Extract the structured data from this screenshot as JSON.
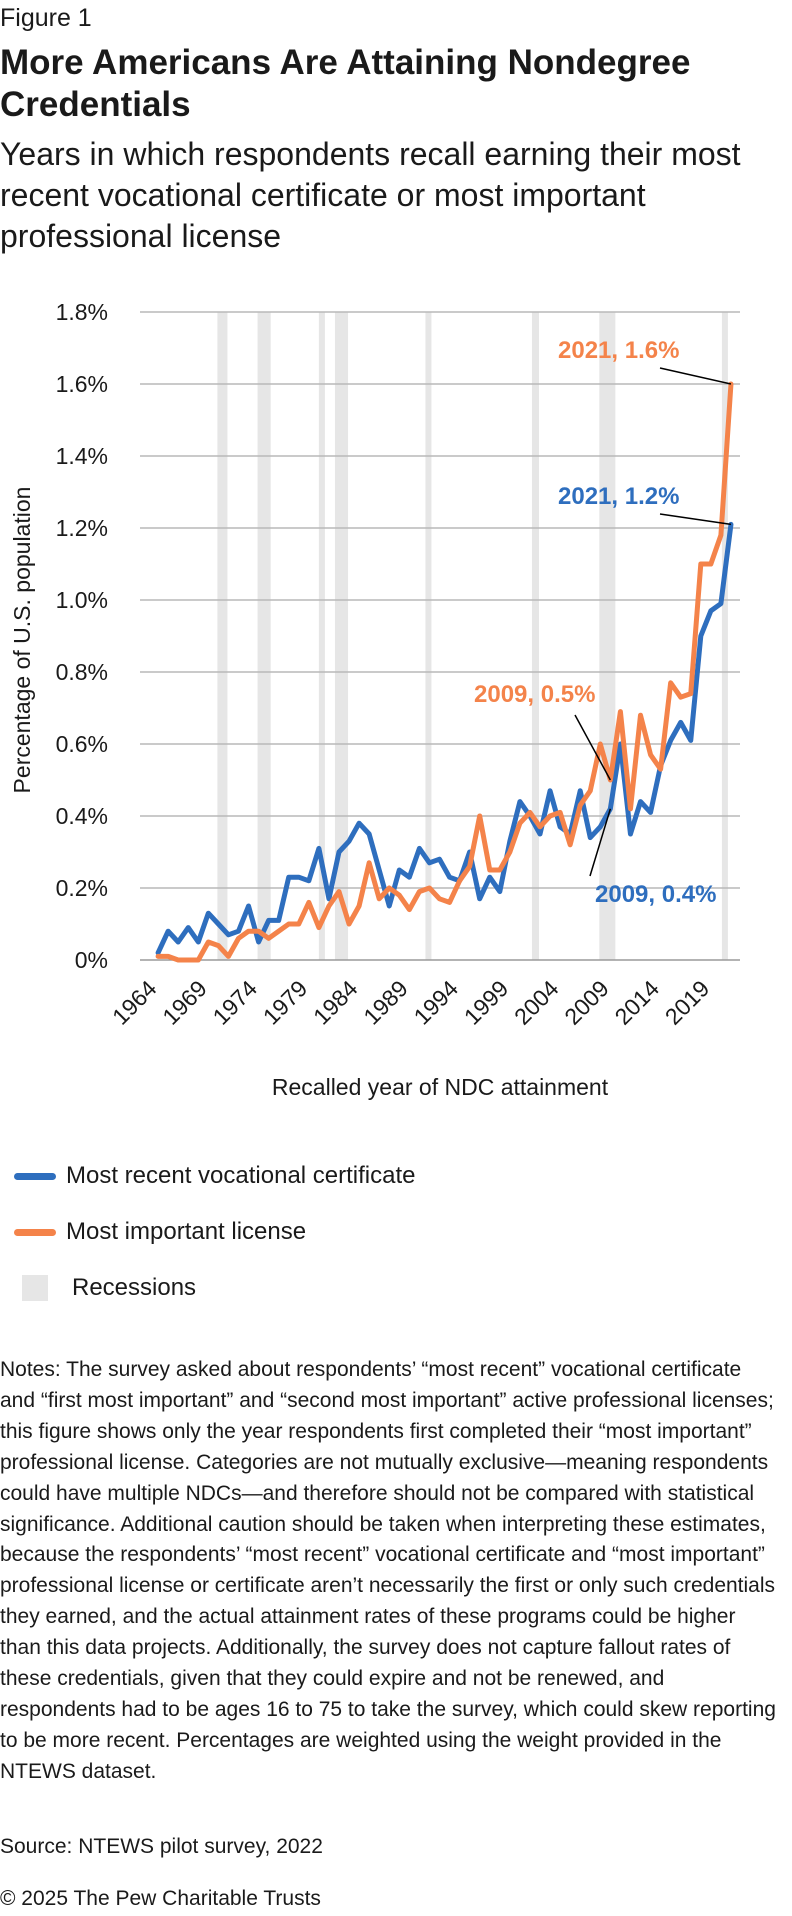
{
  "figure_label": "Figure 1",
  "title": "More Americans Are Attaining Nondegree Credentials",
  "subtitle": "Years in which respondents recall earning their most recent vocational certificate or most important professional license",
  "legend": {
    "items": [
      {
        "label": "Most recent vocational certificate",
        "kind": "line",
        "color": "#2e6ebe"
      },
      {
        "label": "Most important license",
        "kind": "line",
        "color": "#f4834a"
      },
      {
        "label": "Recessions",
        "kind": "box",
        "color": "#e6e6e6"
      }
    ]
  },
  "notes": "Notes: The survey asked about respondents’ “most recent” vocational certificate and “first most important” and “second most important” active professional licenses; this figure shows only the year respondents first completed their “most important” professional license. Categories are not mutually exclusive—meaning respondents could have multiple NDCs—and therefore should not be compared with statistical significance. Additional caution should be taken when interpreting these estimates, because the respondents’ “most recent” vocational certificate and “most important” professional license or certificate aren’t necessarily the first or only such credentials they earned, and the actual attainment rates of these programs could be higher than this data projects. Additionally, the survey does not capture fallout rates of these credentials, given that they could expire and not be renewed, and respondents had to be ages 16 to 75 to take the survey, which could skew reporting to be more recent. Percentages are weighted using the weight provided in the NTEWS dataset.",
  "source": "Source: NTEWS pilot survey, 2022",
  "copyright": "© 2025 The Pew Charitable Trusts",
  "chart_data": {
    "type": "line",
    "xlabel": "Recalled year of NDC attainment",
    "ylabel": "Percentage of U.S. population",
    "xlim": [
      1964,
      2021
    ],
    "ylim": [
      0,
      1.8
    ],
    "y_ticks": [
      0,
      0.2,
      0.4,
      0.6,
      0.8,
      1.0,
      1.2,
      1.4,
      1.6,
      1.8
    ],
    "y_tick_labels": [
      "0%",
      "0.2%",
      "0.4%",
      "0.6%",
      "0.8%",
      "1.0%",
      "1.2%",
      "1.4%",
      "1.6%",
      "1.8%"
    ],
    "x_ticks": [
      1964,
      1969,
      1974,
      1979,
      1984,
      1989,
      1994,
      1999,
      2004,
      2009,
      2014,
      2019
    ],
    "x_tick_labels": [
      "1964",
      "1969",
      "1974",
      "1979",
      "1984",
      "1989",
      "1994",
      "1999",
      "2004",
      "2009",
      "2014",
      "2019"
    ],
    "grid": true,
    "recessions": [
      [
        1969.9,
        1970.9
      ],
      [
        1973.9,
        1975.2
      ],
      [
        1980.0,
        1980.5
      ],
      [
        1981.6,
        1982.9
      ],
      [
        1990.6,
        1991.2
      ],
      [
        2001.2,
        2001.9
      ],
      [
        2007.9,
        2009.5
      ],
      [
        2020.1,
        2020.5
      ]
    ],
    "x": [
      1964,
      1965,
      1966,
      1967,
      1968,
      1969,
      1970,
      1971,
      1972,
      1973,
      1974,
      1975,
      1976,
      1977,
      1978,
      1979,
      1980,
      1981,
      1982,
      1983,
      1984,
      1985,
      1986,
      1987,
      1988,
      1989,
      1990,
      1991,
      1992,
      1993,
      1994,
      1995,
      1996,
      1997,
      1998,
      1999,
      2000,
      2001,
      2002,
      2003,
      2004,
      2005,
      2006,
      2007,
      2008,
      2009,
      2010,
      2011,
      2012,
      2013,
      2014,
      2015,
      2016,
      2017,
      2018,
      2019,
      2020,
      2021
    ],
    "series": [
      {
        "name": "Most recent vocational certificate",
        "color": "#2e6ebe",
        "values": [
          0.02,
          0.08,
          0.05,
          0.09,
          0.05,
          0.13,
          0.1,
          0.07,
          0.08,
          0.15,
          0.05,
          0.11,
          0.11,
          0.23,
          0.23,
          0.22,
          0.31,
          0.17,
          0.3,
          0.33,
          0.38,
          0.35,
          0.25,
          0.15,
          0.25,
          0.23,
          0.31,
          0.27,
          0.28,
          0.23,
          0.22,
          0.3,
          0.17,
          0.23,
          0.19,
          0.33,
          0.44,
          0.4,
          0.35,
          0.47,
          0.37,
          0.35,
          0.47,
          0.34,
          0.37,
          0.42,
          0.6,
          0.35,
          0.44,
          0.41,
          0.54,
          0.61,
          0.66,
          0.61,
          0.9,
          0.97,
          0.99,
          1.21
        ]
      },
      {
        "name": "Most important license",
        "color": "#f4834a",
        "values": [
          0.01,
          0.01,
          0.0,
          0.0,
          0.0,
          0.05,
          0.04,
          0.01,
          0.06,
          0.08,
          0.08,
          0.06,
          0.08,
          0.1,
          0.1,
          0.16,
          0.09,
          0.15,
          0.19,
          0.1,
          0.15,
          0.27,
          0.17,
          0.2,
          0.18,
          0.14,
          0.19,
          0.2,
          0.17,
          0.16,
          0.22,
          0.26,
          0.4,
          0.25,
          0.25,
          0.3,
          0.38,
          0.41,
          0.37,
          0.4,
          0.41,
          0.32,
          0.43,
          0.47,
          0.6,
          0.5,
          0.69,
          0.42,
          0.68,
          0.57,
          0.53,
          0.77,
          0.73,
          0.74,
          1.1,
          1.1,
          1.18,
          1.6
        ]
      }
    ],
    "annotations": [
      {
        "text": "2021, 1.6%",
        "series": 1,
        "x": 2021,
        "y": 1.6
      },
      {
        "text": "2021, 1.2%",
        "series": 0,
        "x": 2021,
        "y": 1.21
      },
      {
        "text": "2009, 0.5%",
        "series": 1,
        "x": 2009,
        "y": 0.5
      },
      {
        "text": "2009, 0.4%",
        "series": 0,
        "x": 2009,
        "y": 0.42
      }
    ]
  }
}
